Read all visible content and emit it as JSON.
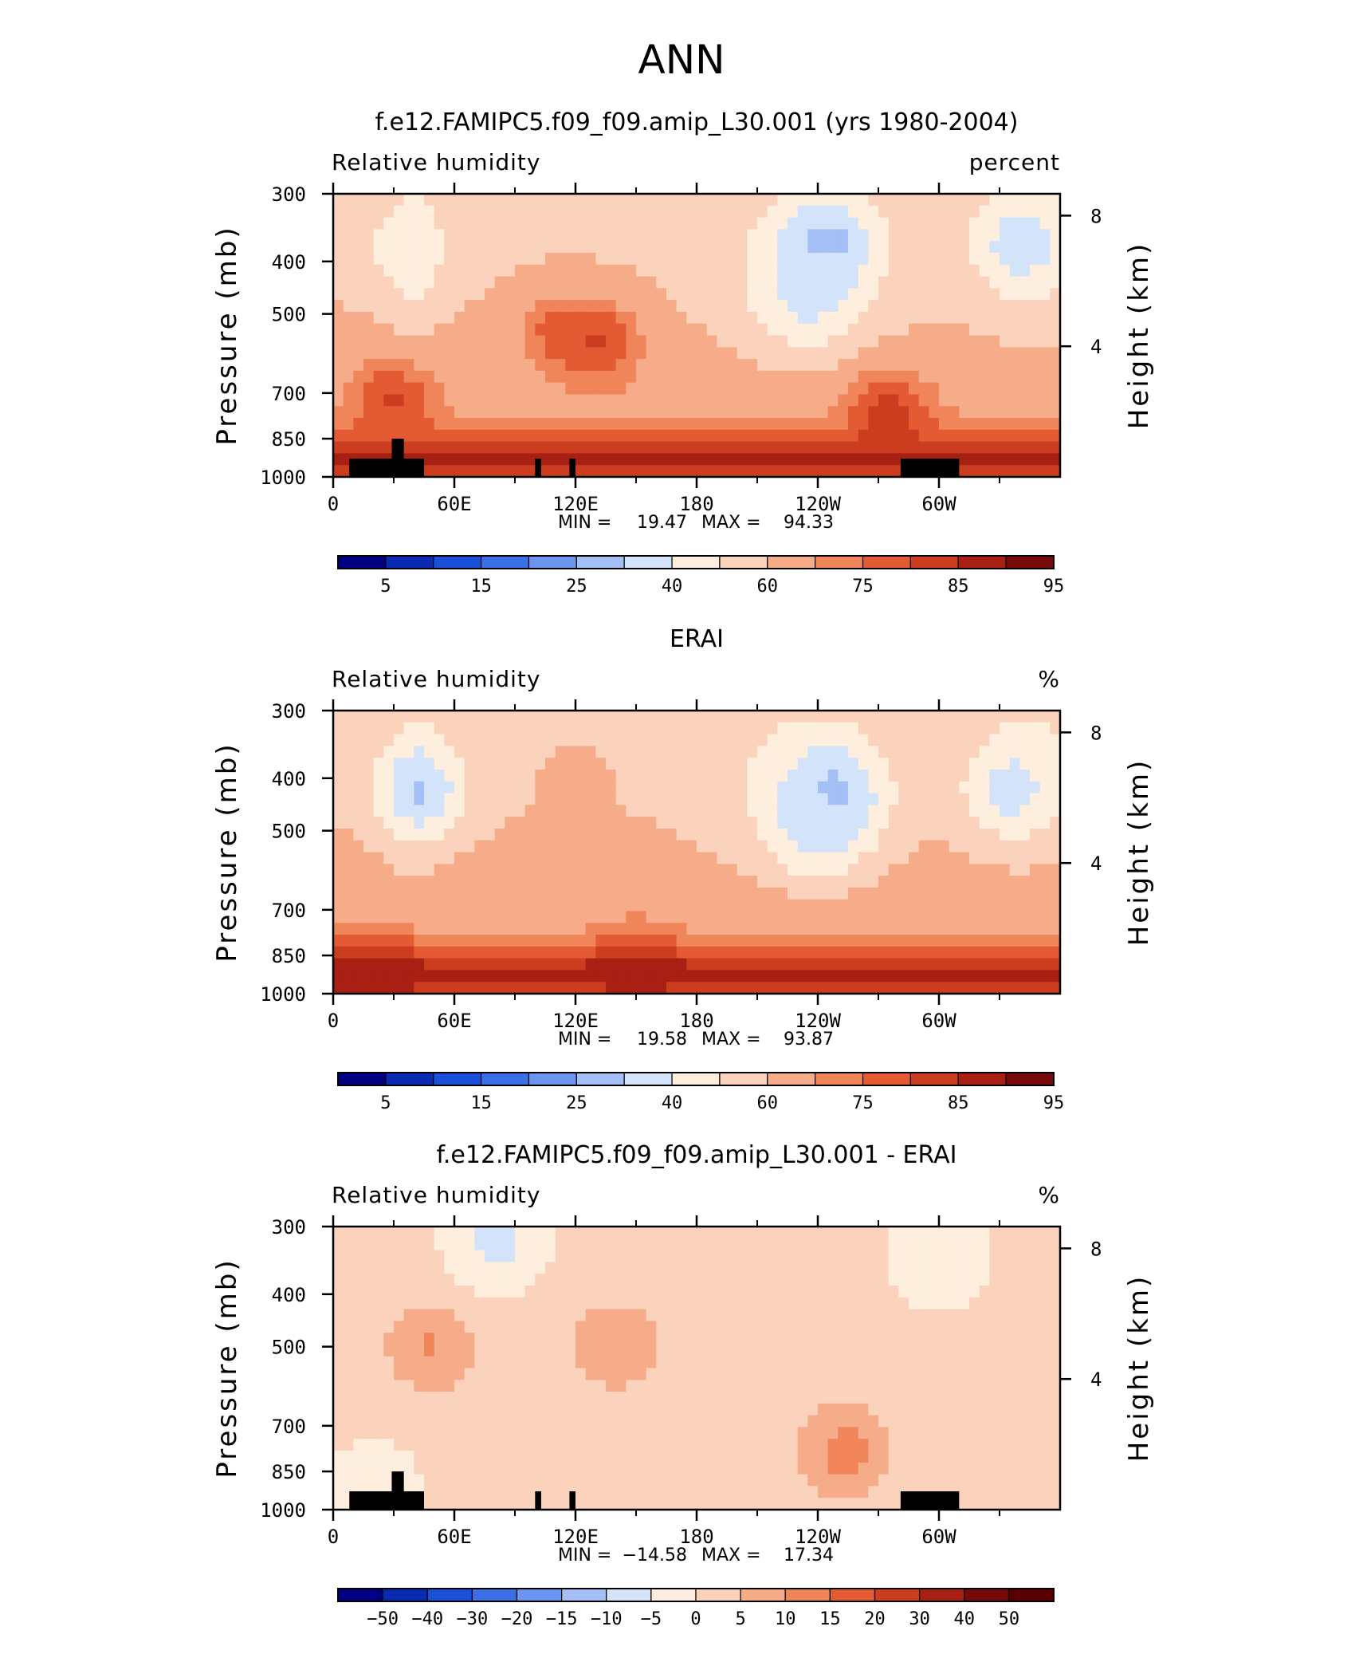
{
  "page_title": "ANN",
  "chart_data": [
    {
      "type": "heatmap",
      "title": "f.e12.FAMIPC5.f09_f09.amip_L30.001 (yrs 1980-2004)",
      "left_label": "Relative humidity",
      "right_label": "percent",
      "ylabel": "Pressure (mb)",
      "y2label": "Height (km)",
      "xticks": [
        "0",
        "60E",
        "120E",
        "180",
        "120W",
        "60W"
      ],
      "yticks": [
        "300",
        "400",
        "500",
        "700",
        "850",
        "1000"
      ],
      "y2ticks": [
        "8",
        "4"
      ],
      "min_max": {
        "min_label": "MIN =",
        "min": "19.47",
        "max_label": "MAX =",
        "max": "94.33"
      },
      "colorbar_labels": [
        "5",
        "15",
        "25",
        "40",
        "60",
        "75",
        "85",
        "95"
      ],
      "palette": [
        "#000080",
        "#0a2ab4",
        "#1a4fd9",
        "#3a6fe6",
        "#6b95f0",
        "#a3bff5",
        "#d3e4fa",
        "#fdeede",
        "#fbd2bb",
        "#f6ac88",
        "#ef8559",
        "#e45a33",
        "#cc3c1f",
        "#a81f14",
        "#760a0a"
      ],
      "range": [
        19.47,
        94.33
      ],
      "topography": true,
      "features": [
        {
          "lon": 245,
          "p": 370,
          "value": 22
        },
        {
          "lon": 235,
          "p": 470,
          "value": 35
        },
        {
          "lon": 340,
          "p": 370,
          "value": 32
        },
        {
          "lon": 35,
          "p": 380,
          "value": 42
        },
        {
          "lon": 110,
          "p": 540,
          "value": 78
        },
        {
          "lon": 133,
          "p": 560,
          "value": 83
        },
        {
          "lon": 30,
          "p": 720,
          "value": 83
        },
        {
          "lon": 275,
          "p": 760,
          "value": 85
        }
      ]
    },
    {
      "type": "heatmap",
      "title": "ERAI",
      "left_label": "Relative humidity",
      "right_label": "%",
      "ylabel": "Pressure (mb)",
      "y2label": "Height (km)",
      "xticks": [
        "0",
        "60E",
        "120E",
        "180",
        "120W",
        "60W"
      ],
      "yticks": [
        "300",
        "400",
        "500",
        "700",
        "850",
        "1000"
      ],
      "y2ticks": [
        "8",
        "4"
      ],
      "min_max": {
        "min_label": "MIN =",
        "min": "19.58",
        "max_label": "MAX =",
        "max": "93.87"
      },
      "colorbar_labels": [
        "5",
        "15",
        "25",
        "40",
        "60",
        "75",
        "85",
        "95"
      ],
      "palette": [
        "#000080",
        "#0a2ab4",
        "#1a4fd9",
        "#3a6fe6",
        "#6b95f0",
        "#a3bff5",
        "#d3e4fa",
        "#fdeede",
        "#fbd2bb",
        "#f6ac88",
        "#ef8559",
        "#e45a33",
        "#cc3c1f",
        "#a81f14",
        "#760a0a"
      ],
      "range": [
        19.58,
        93.87
      ],
      "topography": false,
      "features": [
        {
          "lon": 248,
          "p": 430,
          "value": 22
        },
        {
          "lon": 240,
          "p": 500,
          "value": 33
        },
        {
          "lon": 335,
          "p": 420,
          "value": 33
        },
        {
          "lon": 43,
          "p": 420,
          "value": 25
        },
        {
          "lon": 120,
          "p": 400,
          "value": 62
        },
        {
          "lon": 150,
          "p": 930,
          "value": 88
        },
        {
          "lon": 20,
          "p": 940,
          "value": 90
        }
      ]
    },
    {
      "type": "heatmap",
      "title": "f.e12.FAMIPC5.f09_f09.amip_L30.001 - ERAI",
      "left_label": "Relative humidity",
      "right_label": "%",
      "ylabel": "Pressure (mb)",
      "y2label": "Height (km)",
      "xticks": [
        "0",
        "60E",
        "120E",
        "180",
        "120W",
        "60W"
      ],
      "yticks": [
        "300",
        "400",
        "500",
        "700",
        "850",
        "1000"
      ],
      "y2ticks": [
        "8",
        "4"
      ],
      "min_max": {
        "min_label": "MIN =",
        "min": "−14.58",
        "max_label": "MAX =",
        "max": "17.34"
      },
      "colorbar_labels": [
        "−50",
        "−40",
        "−30",
        "−20",
        "−15",
        "−10",
        "−5",
        "0",
        "5",
        "10",
        "15",
        "20",
        "30",
        "40",
        "50"
      ],
      "palette": [
        "#000080",
        "#0a2ab4",
        "#1a4fd9",
        "#3a6fe6",
        "#6b95f0",
        "#a3bff5",
        "#d3e4fa",
        "#fdeede",
        "#fbd2bb",
        "#f6ac88",
        "#ef8559",
        "#e45a33",
        "#cc3c1f",
        "#a81f14",
        "#760a0a",
        "#5a0000"
      ],
      "range": [
        -14.58,
        17.34
      ],
      "topography": true,
      "features": [
        {
          "lon": 48,
          "p": 500,
          "value": 12
        },
        {
          "lon": 140,
          "p": 500,
          "value": 11
        },
        {
          "lon": 253,
          "p": 780,
          "value": 14
        },
        {
          "lon": 80,
          "p": 320,
          "value": -8
        },
        {
          "lon": 300,
          "p": 340,
          "value": -6
        },
        {
          "lon": 20,
          "p": 930,
          "value": -5
        }
      ]
    }
  ]
}
